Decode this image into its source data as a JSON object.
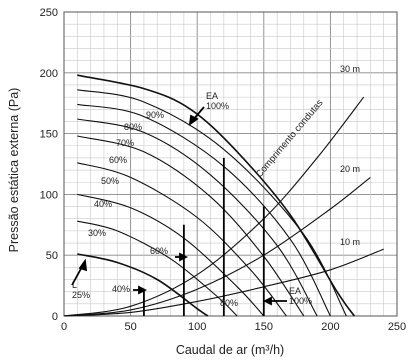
{
  "chart_data": {
    "type": "line",
    "title": "",
    "xlabel": "Caudal de ar (m³/h)",
    "ylabel": "Pressão estática externa (Pa)",
    "xlim": [
      0,
      250
    ],
    "ylim": [
      0,
      250
    ],
    "xticks": [
      "0",
      "50",
      "100",
      "150",
      "200",
      "250"
    ],
    "yticks": [
      "0",
      "50",
      "100",
      "150",
      "200",
      "250"
    ],
    "grid": true,
    "fan_curves": [
      {
        "name": "L 25%",
        "points": [
          [
            10,
            51
          ],
          [
            40,
            44
          ],
          [
            70,
            30
          ],
          [
            100,
            6
          ],
          [
            108,
            0
          ]
        ]
      },
      {
        "name": "30%",
        "points": [
          [
            10,
            78
          ],
          [
            40,
            70
          ],
          [
            80,
            47
          ],
          [
            115,
            16
          ],
          [
            130,
            0
          ]
        ]
      },
      {
        "name": "40%",
        "points": [
          [
            10,
            100
          ],
          [
            50,
            89
          ],
          [
            90,
            64
          ],
          [
            130,
            24
          ],
          [
            150,
            0
          ]
        ]
      },
      {
        "name": "50%",
        "points": [
          [
            10,
            126
          ],
          [
            50,
            114
          ],
          [
            100,
            81
          ],
          [
            140,
            38
          ],
          [
            167,
            0
          ]
        ]
      },
      {
        "name": "60%",
        "points": [
          [
            10,
            148
          ],
          [
            60,
            135
          ],
          [
            110,
            98
          ],
          [
            150,
            49
          ],
          [
            180,
            0
          ]
        ]
      },
      {
        "name": "70%",
        "points": [
          [
            10,
            162
          ],
          [
            60,
            151
          ],
          [
            110,
            116
          ],
          [
            160,
            58
          ],
          [
            190,
            0
          ]
        ]
      },
      {
        "name": "80%",
        "points": [
          [
            10,
            174
          ],
          [
            60,
            164
          ],
          [
            120,
            123
          ],
          [
            170,
            63
          ],
          [
            200,
            0
          ]
        ]
      },
      {
        "name": "90%",
        "points": [
          [
            10,
            186
          ],
          [
            60,
            176
          ],
          [
            120,
            137
          ],
          [
            180,
            67
          ],
          [
            212,
            0
          ]
        ]
      },
      {
        "name": "EA 100%",
        "points": [
          [
            10,
            198
          ],
          [
            60,
            187
          ],
          [
            95,
            170
          ],
          [
            130,
            135
          ],
          [
            170,
            83
          ],
          [
            205,
            20
          ],
          [
            218,
            0
          ]
        ]
      }
    ],
    "duct_curves": [
      {
        "name": "10 m",
        "points": [
          [
            0,
            0
          ],
          [
            50,
            3
          ],
          [
            100,
            12
          ],
          [
            150,
            24
          ],
          [
            200,
            38
          ],
          [
            240,
            55
          ]
        ]
      },
      {
        "name": "20 m",
        "points": [
          [
            0,
            0
          ],
          [
            50,
            5
          ],
          [
            100,
            22
          ],
          [
            150,
            50
          ],
          [
            200,
            88
          ],
          [
            230,
            114
          ]
        ]
      },
      {
        "name": "30 m",
        "points": [
          [
            0,
            0
          ],
          [
            50,
            8
          ],
          [
            100,
            34
          ],
          [
            150,
            80
          ],
          [
            190,
            130
          ],
          [
            225,
            180
          ]
        ]
      }
    ],
    "vertical_lines": [
      {
        "x": 60,
        "y_top": 22
      },
      {
        "x": 90,
        "y_top": 75
      },
      {
        "x": 120,
        "y_top": 130
      },
      {
        "x": 150,
        "y_top": 90
      }
    ],
    "annotations": {
      "ea_top": [
        "EA",
        "100%"
      ],
      "ea_bottom": [
        "EA",
        "100%"
      ],
      "l_bottom": [
        "L",
        "25%"
      ],
      "duct_label": "Comprimento condutas",
      "p90": "90%",
      "p80": "80%",
      "p70": "70%",
      "p60": "60%",
      "p50": "50%",
      "p40": "40%",
      "p30": "30%",
      "mid60": "60%",
      "low40": "40%",
      "low80": "80%",
      "m30": "30 m",
      "m20": "20 m",
      "m10": "10 m"
    }
  }
}
